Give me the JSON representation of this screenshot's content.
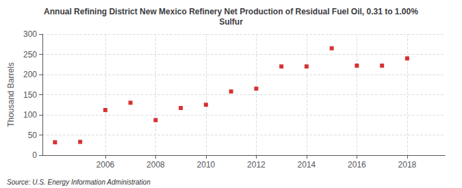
{
  "chart_data": {
    "type": "scatter",
    "title": "Annual Refining District New Mexico Refinery Net Production of Residual Fuel Oil, 0.31 to 1.00%\nSulfur",
    "ylabel": "Thousand Barrels",
    "annotations": [
      "Source: U.S. Energy Information Administration"
    ],
    "x": [
      2004,
      2005,
      2006,
      2007,
      2008,
      2009,
      2010,
      2011,
      2012,
      2013,
      2014,
      2015,
      2016,
      2017,
      2018
    ],
    "values": [
      32,
      33,
      112,
      130,
      87,
      117,
      125,
      158,
      165,
      220,
      220,
      265,
      222,
      222,
      240
    ],
    "color": "#cc0000",
    "marker": "square",
    "xlim": [
      2003.5,
      2019.5
    ],
    "ylim": [
      0,
      300
    ],
    "xticks": [
      2006,
      2008,
      2010,
      2012,
      2014,
      2016,
      2018
    ],
    "yticks": [
      0,
      50,
      100,
      150,
      200,
      250,
      300
    ],
    "grid": true
  }
}
